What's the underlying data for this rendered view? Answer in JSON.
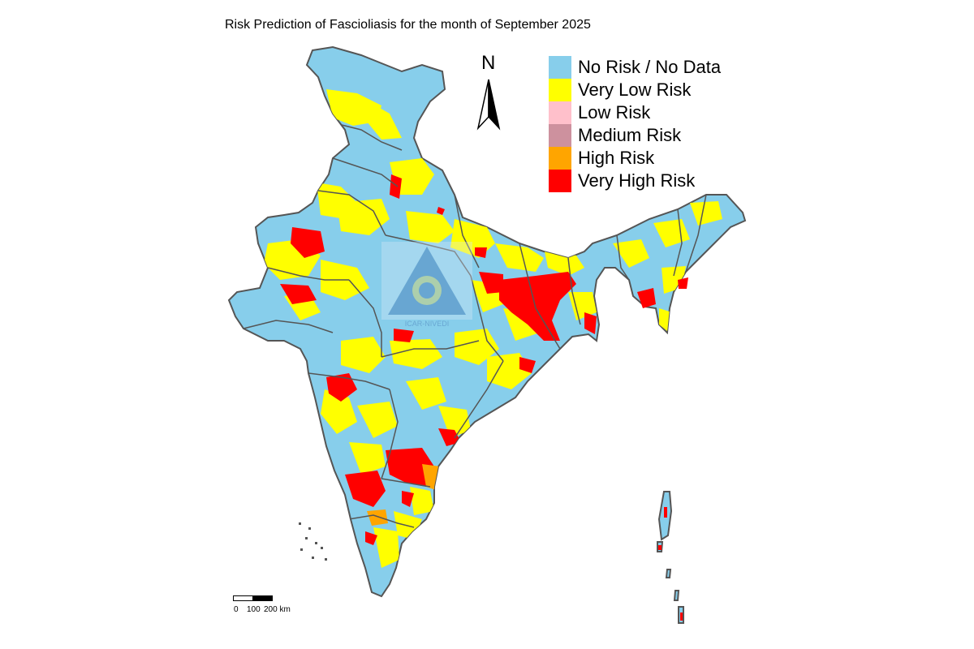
{
  "title": "Risk Prediction of Fascioliasis for the month of September 2025",
  "north_arrow": {
    "letter": "N",
    "icon": "north-arrow-icon"
  },
  "legend": {
    "items": [
      {
        "label": "No Risk / No Data",
        "color": "#87ceeb"
      },
      {
        "label": "Very Low Risk",
        "color": "#ffff00"
      },
      {
        "label": "Low Risk",
        "color": "#ffc0cb"
      },
      {
        "label": "Medium Risk",
        "color": "#cd919e"
      },
      {
        "label": "High Risk",
        "color": "#ffa500"
      },
      {
        "label": "Very High Risk",
        "color": "#ff0000"
      }
    ]
  },
  "scale_bar": {
    "labels": [
      "0",
      "100",
      "200 km"
    ]
  },
  "watermark": {
    "text": "ICAR-NIVEDI",
    "icon": "icar-nivedi-logo-icon"
  },
  "colors": {
    "border": "#555555",
    "no_risk": "#87ceeb",
    "very_low": "#ffff00",
    "high": "#ffa500",
    "very_high": "#ff0000"
  }
}
